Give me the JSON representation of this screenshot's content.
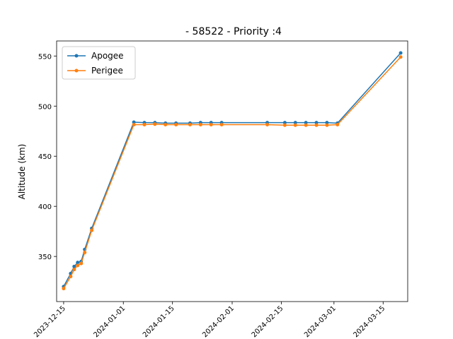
{
  "chart_data": {
    "type": "line",
    "title": "- 58522 - Priority :4",
    "xlabel": "",
    "ylabel": "Altitude (km)",
    "x_axis_type": "date",
    "xlim": [
      "2023-12-13",
      "2024-03-22"
    ],
    "ylim": [
      305,
      565
    ],
    "x_ticks": [
      "2023-12-15",
      "2024-01-01",
      "2024-01-15",
      "2024-02-01",
      "2024-02-15",
      "2024-03-01",
      "2024-03-15"
    ],
    "y_ticks": [
      350,
      400,
      450,
      500,
      550
    ],
    "grid": false,
    "legend": "top-left",
    "series": [
      {
        "name": "Apogee",
        "color": "#1f77b4",
        "points": [
          {
            "x": "2023-12-15",
            "y": 320
          },
          {
            "x": "2023-12-17",
            "y": 333
          },
          {
            "x": "2023-12-18",
            "y": 340
          },
          {
            "x": "2023-12-19",
            "y": 344
          },
          {
            "x": "2023-12-20",
            "y": 345
          },
          {
            "x": "2023-12-21",
            "y": 357
          },
          {
            "x": "2023-12-23",
            "y": 378
          },
          {
            "x": "2024-01-04",
            "y": 484
          },
          {
            "x": "2024-01-07",
            "y": 483.5
          },
          {
            "x": "2024-01-10",
            "y": 483.5
          },
          {
            "x": "2024-01-13",
            "y": 483
          },
          {
            "x": "2024-01-16",
            "y": 483
          },
          {
            "x": "2024-01-20",
            "y": 483
          },
          {
            "x": "2024-01-23",
            "y": 483.5
          },
          {
            "x": "2024-01-26",
            "y": 483.5
          },
          {
            "x": "2024-01-29",
            "y": 483.5
          },
          {
            "x": "2024-02-11",
            "y": 483.5
          },
          {
            "x": "2024-02-16",
            "y": 483.5
          },
          {
            "x": "2024-02-19",
            "y": 483.5
          },
          {
            "x": "2024-02-22",
            "y": 483.5
          },
          {
            "x": "2024-02-25",
            "y": 483.5
          },
          {
            "x": "2024-02-28",
            "y": 483.5
          },
          {
            "x": "2024-03-02",
            "y": 483
          },
          {
            "x": "2024-03-20",
            "y": 553
          }
        ]
      },
      {
        "name": "Perigee",
        "color": "#ff7f0e",
        "points": [
          {
            "x": "2023-12-15",
            "y": 318
          },
          {
            "x": "2023-12-17",
            "y": 330
          },
          {
            "x": "2023-12-18",
            "y": 337
          },
          {
            "x": "2023-12-19",
            "y": 341
          },
          {
            "x": "2023-12-20",
            "y": 343
          },
          {
            "x": "2023-12-21",
            "y": 354
          },
          {
            "x": "2023-12-23",
            "y": 376
          },
          {
            "x": "2024-01-04",
            "y": 481.5
          },
          {
            "x": "2024-01-07",
            "y": 481.5
          },
          {
            "x": "2024-01-10",
            "y": 482
          },
          {
            "x": "2024-01-13",
            "y": 481.5
          },
          {
            "x": "2024-01-16",
            "y": 481.5
          },
          {
            "x": "2024-01-20",
            "y": 481.5
          },
          {
            "x": "2024-01-23",
            "y": 481.5
          },
          {
            "x": "2024-01-26",
            "y": 481.5
          },
          {
            "x": "2024-01-29",
            "y": 481.5
          },
          {
            "x": "2024-02-11",
            "y": 481.5
          },
          {
            "x": "2024-02-16",
            "y": 481
          },
          {
            "x": "2024-02-19",
            "y": 481
          },
          {
            "x": "2024-02-22",
            "y": 481
          },
          {
            "x": "2024-02-25",
            "y": 481
          },
          {
            "x": "2024-02-28",
            "y": 481
          },
          {
            "x": "2024-03-02",
            "y": 481.5
          },
          {
            "x": "2024-03-20",
            "y": 549
          }
        ]
      }
    ]
  }
}
